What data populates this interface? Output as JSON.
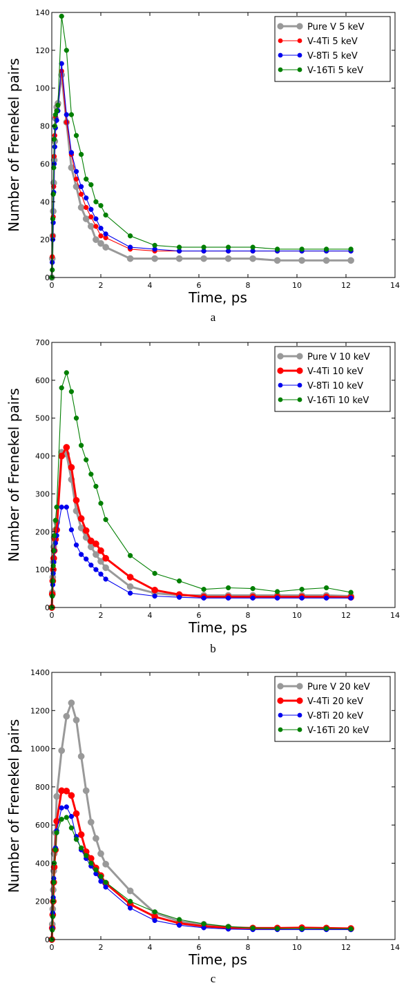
{
  "chart_data": [
    {
      "type": "line",
      "caption": "a",
      "xlabel": "Time, ps",
      "ylabel": "Number of Frenekel pairs",
      "xlim": [
        0,
        14
      ],
      "ylim": [
        0,
        140
      ],
      "xticks": [
        0,
        2,
        4,
        6,
        8,
        10,
        12,
        14
      ],
      "yticks": [
        0,
        20,
        40,
        60,
        80,
        100,
        120,
        140
      ],
      "legend_position": "top-right",
      "grid": false,
      "series": [
        {
          "name": "Pure V 5 keV",
          "color": "#999999",
          "style": "thick",
          "x": [
            0,
            0.02,
            0.04,
            0.06,
            0.08,
            0.1,
            0.12,
            0.15,
            0.2,
            0.25,
            0.4,
            0.6,
            0.8,
            1.0,
            1.2,
            1.4,
            1.6,
            1.8,
            2.0,
            2.2,
            3.2,
            4.2,
            5.2,
            6.2,
            7.2,
            8.2,
            9.2,
            10.2,
            11.2,
            12.2
          ],
          "y": [
            0,
            10,
            22,
            35,
            50,
            62,
            72,
            84,
            90,
            92,
            107,
            82,
            58,
            48,
            37,
            31,
            27,
            20,
            18,
            16,
            10,
            10,
            10,
            10,
            10,
            10,
            9,
            9,
            9,
            9
          ]
        },
        {
          "name": "V-4Ti 5 keV",
          "color": "#ff0000",
          "style": "normal",
          "x": [
            0,
            0.02,
            0.04,
            0.06,
            0.08,
            0.1,
            0.12,
            0.15,
            0.2,
            0.25,
            0.4,
            0.6,
            0.8,
            1.0,
            1.2,
            1.4,
            1.6,
            1.8,
            2.0,
            2.2,
            3.2,
            4.2,
            5.2,
            6.2,
            7.2,
            8.2,
            9.2,
            10.2,
            11.2,
            12.2
          ],
          "y": [
            0,
            11,
            22,
            32,
            48,
            64,
            75,
            85,
            88,
            91,
            109,
            82,
            65,
            52,
            44,
            37,
            32,
            27,
            22,
            21,
            15,
            14,
            14,
            14,
            14,
            14,
            14,
            14,
            14,
            14
          ]
        },
        {
          "name": "V-8Ti 5 keV",
          "color": "#0000ee",
          "style": "normal",
          "x": [
            0,
            0.02,
            0.04,
            0.06,
            0.08,
            0.1,
            0.12,
            0.15,
            0.2,
            0.25,
            0.4,
            0.6,
            0.8,
            1.0,
            1.2,
            1.4,
            1.6,
            1.8,
            2.0,
            2.2,
            3.2,
            4.2,
            5.2,
            6.2,
            7.2,
            8.2,
            9.2,
            10.2,
            11.2,
            12.2
          ],
          "y": [
            0,
            8,
            20,
            29,
            45,
            60,
            69,
            79,
            83,
            88,
            113,
            86,
            66,
            56,
            48,
            42,
            36,
            31,
            26,
            23,
            16,
            15,
            14,
            14,
            14,
            14,
            14,
            14,
            14,
            14
          ]
        },
        {
          "name": "V-16Ti 5 keV",
          "color": "#007f00",
          "style": "normal",
          "x": [
            0,
            0.02,
            0.04,
            0.06,
            0.08,
            0.1,
            0.12,
            0.15,
            0.2,
            0.25,
            0.4,
            0.6,
            0.8,
            1.0,
            1.2,
            1.4,
            1.6,
            1.8,
            2.0,
            2.2,
            3.2,
            4.2,
            5.2,
            6.2,
            7.2,
            8.2,
            9.2,
            10.2,
            11.2,
            12.2
          ],
          "y": [
            0,
            4,
            31,
            44,
            58,
            73,
            80,
            86,
            88,
            91,
            138,
            120,
            86,
            75,
            65,
            52,
            49,
            40,
            38,
            33,
            22,
            17,
            16,
            16,
            16,
            16,
            15,
            15,
            15,
            15
          ]
        }
      ]
    },
    {
      "type": "line",
      "caption": "b",
      "xlabel": "Time, ps",
      "ylabel": "Number of Frenekel pairs",
      "xlim": [
        0,
        14
      ],
      "ylim": [
        0,
        700
      ],
      "xticks": [
        0,
        2,
        4,
        6,
        8,
        10,
        12,
        14
      ],
      "yticks": [
        0,
        100,
        200,
        300,
        400,
        500,
        600,
        700
      ],
      "legend_position": "top-right",
      "grid": false,
      "series": [
        {
          "name": "Pure V 10 keV",
          "color": "#999999",
          "style": "thick",
          "x": [
            0,
            0.02,
            0.04,
            0.06,
            0.08,
            0.1,
            0.15,
            0.2,
            0.4,
            0.6,
            0.8,
            1.0,
            1.2,
            1.4,
            1.6,
            1.8,
            2.0,
            2.2,
            3.2,
            4.2,
            5.2,
            6.2,
            7.2,
            8.2,
            9.2,
            10.2,
            11.2,
            12.2
          ],
          "y": [
            0,
            40,
            80,
            120,
            160,
            185,
            205,
            225,
            410,
            405,
            338,
            255,
            210,
            185,
            160,
            140,
            122,
            105,
            55,
            38,
            32,
            32,
            32,
            32,
            32,
            32,
            32,
            30
          ]
        },
        {
          "name": "V-4Ti 10 keV",
          "color": "#ff0000",
          "style": "thick",
          "x": [
            0,
            0.02,
            0.04,
            0.06,
            0.08,
            0.1,
            0.15,
            0.2,
            0.4,
            0.6,
            0.8,
            1.0,
            1.2,
            1.4,
            1.6,
            1.8,
            2.0,
            2.2,
            3.2,
            4.2,
            5.2,
            6.2,
            7.2,
            8.2,
            9.2,
            10.2,
            11.2,
            12.2
          ],
          "y": [
            0,
            35,
            70,
            100,
            130,
            150,
            180,
            205,
            400,
            423,
            370,
            283,
            235,
            203,
            176,
            168,
            150,
            130,
            80,
            46,
            34,
            28,
            28,
            28,
            28,
            28,
            28,
            27
          ]
        },
        {
          "name": "V-8Ti 10 keV",
          "color": "#0000ee",
          "style": "normal",
          "x": [
            0,
            0.02,
            0.04,
            0.06,
            0.08,
            0.1,
            0.15,
            0.2,
            0.4,
            0.6,
            0.8,
            1.0,
            1.2,
            1.4,
            1.6,
            1.8,
            2.0,
            2.2,
            3.2,
            4.2,
            5.2,
            6.2,
            7.2,
            8.2,
            9.2,
            10.2,
            11.2,
            12.2
          ],
          "y": [
            0,
            30,
            60,
            90,
            120,
            150,
            170,
            190,
            265,
            265,
            205,
            165,
            140,
            128,
            112,
            100,
            88,
            75,
            38,
            30,
            27,
            25,
            25,
            25,
            25,
            25,
            25,
            25
          ]
        },
        {
          "name": "V-16Ti 10 keV",
          "color": "#007f00",
          "style": "normal",
          "x": [
            0,
            0.02,
            0.04,
            0.06,
            0.08,
            0.1,
            0.15,
            0.2,
            0.4,
            0.6,
            0.8,
            1.0,
            1.2,
            1.4,
            1.6,
            1.8,
            2.0,
            2.2,
            3.2,
            4.2,
            5.2,
            6.2,
            7.2,
            8.2,
            9.2,
            10.2,
            11.2,
            12.2
          ],
          "y": [
            0,
            30,
            70,
            110,
            150,
            190,
            230,
            265,
            580,
            620,
            570,
            500,
            428,
            390,
            352,
            320,
            275,
            232,
            137,
            90,
            70,
            48,
            52,
            50,
            42,
            48,
            52,
            40
          ]
        }
      ]
    },
    {
      "type": "line",
      "caption": "c",
      "xlabel": "Time, ps",
      "ylabel": "Number of Frenekel pairs",
      "xlim": [
        0,
        14
      ],
      "ylim": [
        0,
        1400
      ],
      "xticks": [
        0,
        2,
        4,
        6,
        8,
        10,
        12,
        14
      ],
      "yticks": [
        0,
        200,
        400,
        600,
        800,
        1000,
        1200,
        1400
      ],
      "legend_position": "top-right",
      "grid": false,
      "series": [
        {
          "name": "Pure V 20 keV",
          "color": "#999999",
          "style": "thick",
          "x": [
            0,
            0.02,
            0.04,
            0.06,
            0.08,
            0.1,
            0.15,
            0.2,
            0.4,
            0.6,
            0.8,
            1.0,
            1.2,
            1.4,
            1.6,
            1.8,
            2.0,
            2.2,
            3.2,
            4.2,
            5.2,
            6.2,
            7.2,
            8.2,
            9.2,
            10.2,
            11.2,
            12.2
          ],
          "y": [
            0,
            80,
            160,
            260,
            360,
            450,
            560,
            750,
            990,
            1170,
            1240,
            1150,
            960,
            780,
            615,
            530,
            450,
            395,
            255,
            140,
            95,
            80,
            65,
            60,
            60,
            58,
            58,
            56
          ]
        },
        {
          "name": "V-4Ti 20 keV",
          "color": "#ff0000",
          "style": "thick",
          "x": [
            0,
            0.02,
            0.04,
            0.06,
            0.08,
            0.1,
            0.15,
            0.2,
            0.4,
            0.6,
            0.8,
            1.0,
            1.2,
            1.4,
            1.6,
            1.8,
            2.0,
            2.2,
            3.2,
            4.2,
            5.2,
            6.2,
            7.2,
            8.2,
            9.2,
            10.2,
            11.2,
            12.2
          ],
          "y": [
            0,
            60,
            130,
            200,
            300,
            380,
            470,
            620,
            780,
            778,
            755,
            660,
            550,
            460,
            425,
            375,
            335,
            295,
            185,
            120,
            85,
            70,
            62,
            60,
            60,
            62,
            60,
            58
          ]
        },
        {
          "name": "V-8Ti 20 keV",
          "color": "#0000ee",
          "style": "normal",
          "x": [
            0,
            0.02,
            0.04,
            0.06,
            0.08,
            0.1,
            0.15,
            0.2,
            0.4,
            0.6,
            0.8,
            1.0,
            1.2,
            1.4,
            1.6,
            1.8,
            2.0,
            2.2,
            3.2,
            4.2,
            5.2,
            6.2,
            7.2,
            8.2,
            9.2,
            10.2,
            11.2,
            12.2
          ],
          "y": [
            0,
            60,
            140,
            220,
            320,
            400,
            480,
            570,
            690,
            695,
            645,
            540,
            470,
            425,
            385,
            345,
            305,
            275,
            165,
            100,
            75,
            62,
            55,
            52,
            52,
            52,
            52,
            52
          ]
        },
        {
          "name": "V-16Ti 20 keV",
          "color": "#007f00",
          "style": "normal",
          "x": [
            0,
            0.02,
            0.04,
            0.06,
            0.08,
            0.1,
            0.15,
            0.2,
            0.4,
            0.6,
            0.8,
            1.0,
            1.2,
            1.4,
            1.6,
            1.8,
            2.0,
            2.2,
            3.2,
            4.2,
            5.2,
            6.2,
            7.2,
            8.2,
            9.2,
            10.2,
            11.2,
            12.2
          ],
          "y": [
            0,
            50,
            120,
            200,
            300,
            400,
            470,
            560,
            630,
            640,
            585,
            525,
            480,
            440,
            400,
            365,
            330,
            300,
            200,
            145,
            105,
            82,
            68,
            60,
            58,
            58,
            58,
            56
          ]
        }
      ]
    }
  ]
}
